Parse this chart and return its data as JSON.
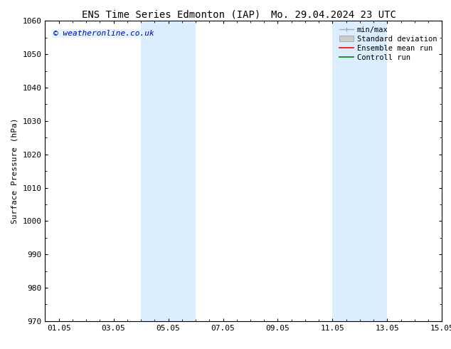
{
  "title_left": "ENS Time Series Edmonton (IAP)",
  "title_right": "Mo. 29.04.2024 23 UTC",
  "ylabel": "Surface Pressure (hPa)",
  "ylim": [
    970,
    1060
  ],
  "yticks": [
    970,
    980,
    990,
    1000,
    1010,
    1020,
    1030,
    1040,
    1050,
    1060
  ],
  "xlim": [
    0,
    14.5
  ],
  "xtick_labels": [
    "01.05",
    "03.05",
    "05.05",
    "07.05",
    "09.05",
    "11.05",
    "13.05",
    "15.05"
  ],
  "xtick_positions": [
    0.5,
    2.5,
    4.5,
    6.5,
    8.5,
    10.5,
    12.5,
    14.5
  ],
  "shaded_bands": [
    {
      "x_start": 3.5,
      "x_end": 5.5
    },
    {
      "x_start": 10.5,
      "x_end": 12.5
    }
  ],
  "shaded_color": "#daeeff",
  "watermark": "© weatheronline.co.uk",
  "watermark_color": "#0000bb",
  "legend_entries": [
    "min/max",
    "Standard deviation",
    "Ensemble mean run",
    "Controll run"
  ],
  "legend_line_colors": [
    "#aaaaaa",
    "#cccccc",
    "#ff0000",
    "#008000"
  ],
  "background_color": "#ffffff",
  "axes_color": "#000000",
  "title_fontsize": 10,
  "tick_fontsize": 8,
  "ylabel_fontsize": 8,
  "watermark_fontsize": 8,
  "legend_fontsize": 7.5
}
